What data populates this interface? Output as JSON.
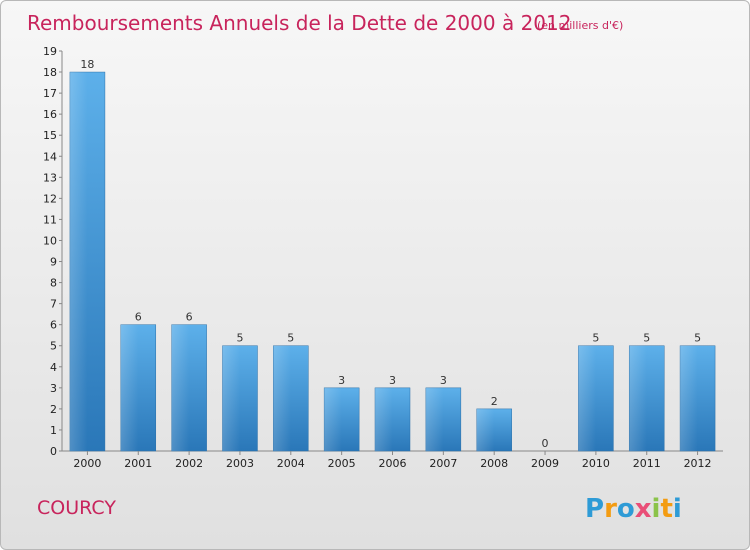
{
  "chart_data": {
    "type": "bar",
    "title": "Remboursements Annuels de la Dette de 2000 à 2012",
    "subtitle": "(en milliers d'€)",
    "categories": [
      "2000",
      "2001",
      "2002",
      "2003",
      "2004",
      "2005",
      "2006",
      "2007",
      "2008",
      "2009",
      "2010",
      "2011",
      "2012"
    ],
    "values": [
      18,
      6,
      6,
      5,
      5,
      3,
      3,
      3,
      2,
      0,
      5,
      5,
      5
    ],
    "value_labels": [
      "18",
      "6",
      "6",
      "5",
      "5",
      "3",
      "3",
      "3",
      "2",
      "0",
      "5",
      "5",
      "5"
    ],
    "y_ticks": [
      "0",
      "1",
      "2",
      "3",
      "4",
      "5",
      "6",
      "7",
      "8",
      "9",
      "10",
      "11",
      "12",
      "13",
      "14",
      "15",
      "16",
      "17",
      "18",
      "19"
    ],
    "ylim": [
      0,
      19
    ],
    "grid": false,
    "bar_color": "#3d8fd0"
  },
  "commune": "COURCY",
  "logo": {
    "letters": [
      "P",
      "r",
      "o",
      "x",
      "i",
      "t",
      "i"
    ],
    "colors": [
      "#2e9bd6",
      "#f39c12",
      "#2e9bd6",
      "#e94e77",
      "#8bc34a",
      "#f39c12",
      "#2e9bd6"
    ]
  },
  "accent_color": "#c8245c"
}
